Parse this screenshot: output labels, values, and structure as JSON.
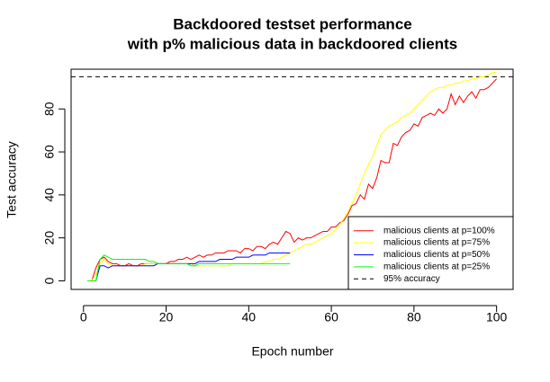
{
  "chart_data": {
    "type": "line",
    "title": [
      "Backdoored testset performance",
      "with p% malicious data in backdoored clients"
    ],
    "x_label": "Epoch number",
    "y_label": "Test accuracy",
    "x": [
      1,
      2,
      3,
      4,
      5,
      6,
      7,
      8,
      9,
      10,
      11,
      12,
      13,
      14,
      15,
      16,
      17,
      18,
      19,
      20,
      21,
      22,
      23,
      24,
      25,
      26,
      27,
      28,
      29,
      30,
      31,
      32,
      33,
      34,
      35,
      36,
      37,
      38,
      39,
      40,
      41,
      42,
      43,
      44,
      45,
      46,
      47,
      48,
      49,
      50,
      51,
      52,
      53,
      54,
      55,
      56,
      57,
      58,
      59,
      60,
      61,
      62,
      63,
      64,
      65,
      66,
      67,
      68,
      69,
      70,
      71,
      72,
      73,
      74,
      75,
      76,
      77,
      78,
      79,
      80,
      81,
      82,
      83,
      84,
      85,
      86,
      87,
      88,
      89,
      90,
      91,
      92,
      93,
      94,
      95,
      96,
      97,
      98,
      99,
      100
    ],
    "series": [
      {
        "name": "malicious clients at p=100%",
        "color": "#ff0000",
        "values": [
          0,
          0,
          6,
          10,
          11,
          9,
          8,
          8,
          7,
          7,
          8,
          7,
          7,
          8,
          8,
          8,
          8,
          8,
          8,
          8,
          9,
          9,
          10,
          10,
          11,
          10,
          11,
          12,
          11,
          12,
          12,
          13,
          13,
          13,
          14,
          14,
          14,
          13,
          15,
          15,
          14,
          16,
          16,
          15,
          17,
          18,
          17,
          20,
          23,
          22,
          18,
          20,
          19,
          20,
          20,
          21,
          22,
          23,
          23,
          25,
          25,
          27,
          28,
          31,
          35,
          36,
          40,
          38,
          45,
          43,
          48,
          56,
          55,
          55,
          64,
          63,
          67,
          69,
          70,
          73,
          72,
          76,
          77,
          78,
          77,
          80,
          78,
          80,
          87,
          82,
          86,
          83,
          86,
          88,
          85,
          89,
          89,
          90,
          92,
          94
        ]
      },
      {
        "name": "malicious clients at p=75%",
        "color": "#ffff00",
        "values": [
          0,
          0,
          3,
          8,
          10,
          8,
          7,
          7,
          7,
          7,
          7,
          7,
          7,
          7,
          8,
          8,
          8,
          8,
          8,
          8,
          8,
          8,
          8,
          8,
          8,
          8,
          7,
          7,
          7,
          7,
          7,
          7,
          7,
          7,
          7,
          8,
          8,
          8,
          8,
          8,
          8,
          8,
          8,
          9,
          9,
          10,
          10,
          11,
          12,
          13,
          14,
          15,
          16,
          17,
          17,
          18,
          19,
          20,
          21,
          22,
          24,
          26,
          29,
          32,
          36,
          40,
          45,
          50,
          54,
          58,
          63,
          68,
          70,
          72,
          73,
          74,
          76,
          77,
          78,
          80,
          82,
          84,
          86,
          88,
          89,
          90,
          90,
          91,
          91,
          92,
          92,
          93,
          93,
          94,
          94,
          95,
          95,
          96,
          97,
          97
        ]
      },
      {
        "name": "malicious clients at p=50%",
        "color": "#0000ff",
        "values": [
          0,
          0,
          0,
          7,
          7,
          6,
          7,
          7,
          7,
          7,
          7,
          7,
          7,
          7,
          7,
          7,
          7,
          8,
          8,
          8,
          8,
          8,
          8,
          8,
          8,
          8,
          8,
          9,
          9,
          9,
          9,
          9,
          10,
          10,
          10,
          10,
          11,
          11,
          11,
          11,
          12,
          12,
          12,
          12,
          13,
          13,
          13,
          13,
          13,
          13,
          null,
          null,
          null,
          null,
          null,
          null,
          null,
          null,
          null,
          null,
          null,
          null,
          null,
          null,
          null,
          null,
          null,
          null,
          null,
          null,
          null,
          null,
          null,
          null,
          null,
          null,
          null,
          null,
          null,
          null,
          null,
          null,
          null,
          null,
          null,
          null,
          null,
          null,
          null,
          null,
          null,
          null,
          null,
          null,
          null,
          null,
          null,
          null,
          null,
          null
        ]
      },
      {
        "name": "malicious clients at p=25%",
        "color": "#00ff00",
        "values": [
          0,
          0,
          0,
          10,
          12,
          11,
          10,
          10,
          10,
          10,
          10,
          10,
          10,
          10,
          10,
          9,
          9,
          8,
          8,
          8,
          8,
          8,
          8,
          8,
          8,
          7,
          7,
          8,
          8,
          8,
          8,
          8,
          8,
          8,
          8,
          8,
          8,
          8,
          8,
          8,
          8,
          8,
          8,
          8,
          8,
          8,
          8,
          8,
          8,
          8,
          null,
          null,
          null,
          null,
          null,
          null,
          null,
          null,
          null,
          null,
          null,
          null,
          null,
          null,
          null,
          null,
          null,
          null,
          null,
          null,
          null,
          null,
          null,
          null,
          null,
          null,
          null,
          null,
          null,
          null,
          null,
          null,
          null,
          null,
          null,
          null,
          null,
          null,
          null,
          null,
          null,
          null,
          null,
          null,
          null,
          null,
          null,
          null,
          null,
          null
        ]
      }
    ],
    "hline": {
      "name": "95% accuracy",
      "value": 95,
      "color": "#000000",
      "dashed": true
    },
    "xlim": [
      -3,
      104
    ],
    "ylim": [
      -4,
      98.5
    ],
    "xticks": [
      0,
      20,
      40,
      60,
      80,
      100
    ],
    "yticks": [
      0,
      20,
      40,
      60,
      80
    ],
    "legend": "bottomright"
  }
}
